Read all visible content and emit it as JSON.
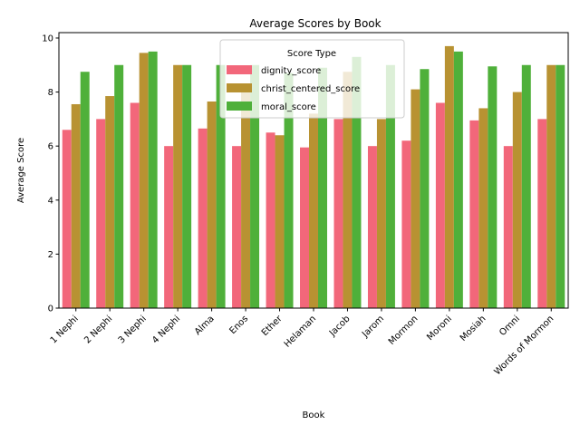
{
  "chart_data": {
    "type": "bar",
    "title": "Average Scores by Book",
    "xlabel": "Book",
    "ylabel": "Average Score",
    "ylim": [
      0,
      10.2
    ],
    "yticks": [
      0,
      2,
      4,
      6,
      8,
      10
    ],
    "grid": false,
    "categories": [
      "1 Nephi",
      "2 Nephi",
      "3 Nephi",
      "4 Nephi",
      "Alma",
      "Enos",
      "Ether",
      "Helaman",
      "Jacob",
      "Jarom",
      "Mormon",
      "Moroni",
      "Mosiah",
      "Omni",
      "Words of Mormon"
    ],
    "legend": {
      "title": "Score Type",
      "placement": "upper-center"
    },
    "series": [
      {
        "name": "dignity_score",
        "color": "#f2677a",
        "values": [
          6.6,
          7.0,
          7.6,
          6.0,
          6.65,
          6.0,
          6.5,
          5.95,
          7.0,
          6.0,
          6.2,
          7.6,
          6.95,
          6.0,
          7.0
        ]
      },
      {
        "name": "christ_centered_score",
        "color": "#b89232",
        "values": [
          7.55,
          7.85,
          9.45,
          9.0,
          7.65,
          8.3,
          6.4,
          7.2,
          8.75,
          7.0,
          8.1,
          9.7,
          7.4,
          8.0,
          9.0
        ]
      },
      {
        "name": "moral_score",
        "color": "#4fb03a",
        "values": [
          8.75,
          9.0,
          9.5,
          9.0,
          9.0,
          9.0,
          8.7,
          8.9,
          9.3,
          9.0,
          8.85,
          9.5,
          8.95,
          9.0,
          9.0
        ]
      }
    ]
  }
}
